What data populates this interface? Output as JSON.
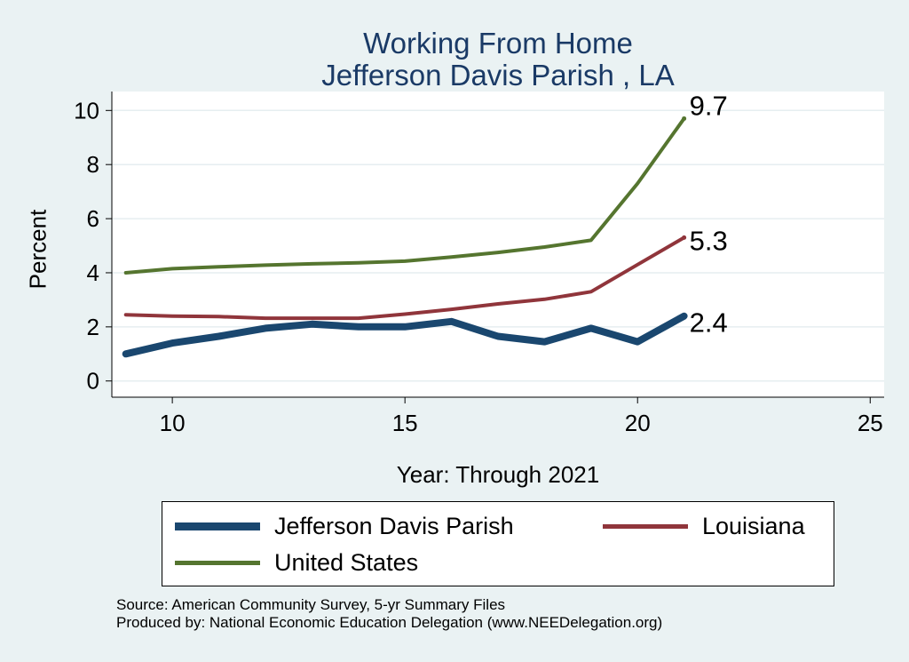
{
  "chart_data": {
    "type": "line",
    "title": "Working From Home",
    "subtitle": "Jefferson Davis Parish , LA",
    "xlabel": "Year: Through 2021",
    "ylabel": "Percent",
    "xlim": [
      8.7,
      25.3
    ],
    "ylim": [
      -0.6,
      10.7
    ],
    "xticks": [
      10,
      15,
      20,
      25
    ],
    "yticks": [
      0,
      2,
      4,
      6,
      8,
      10
    ],
    "grid": true,
    "legend_position": "bottom",
    "x": [
      9,
      10,
      11,
      12,
      13,
      14,
      15,
      16,
      17,
      18,
      19,
      20,
      21
    ],
    "series": [
      {
        "name": "Jefferson Davis Parish",
        "color": "#1a476f",
        "values": [
          1.0,
          1.4,
          1.65,
          1.95,
          2.1,
          2.0,
          2.0,
          2.2,
          1.65,
          1.45,
          1.95,
          1.45,
          2.4
        ],
        "end_label": "2.4"
      },
      {
        "name": "Louisiana",
        "color": "#90353b",
        "values": [
          2.45,
          2.4,
          2.38,
          2.32,
          2.32,
          2.32,
          2.47,
          2.65,
          2.85,
          3.02,
          3.3,
          4.3,
          5.3
        ],
        "end_label": "5.3"
      },
      {
        "name": "United States",
        "color": "#55752f",
        "values": [
          4.0,
          4.15,
          4.22,
          4.28,
          4.33,
          4.37,
          4.43,
          4.58,
          4.75,
          4.95,
          5.2,
          7.3,
          9.7
        ],
        "end_label": "9.7"
      }
    ]
  },
  "source_line1": "Source: American Community Survey, 5-yr Summary Files",
  "source_line2": "Produced by: National Economic Education Delegation (www.NEEDelegation.org)"
}
